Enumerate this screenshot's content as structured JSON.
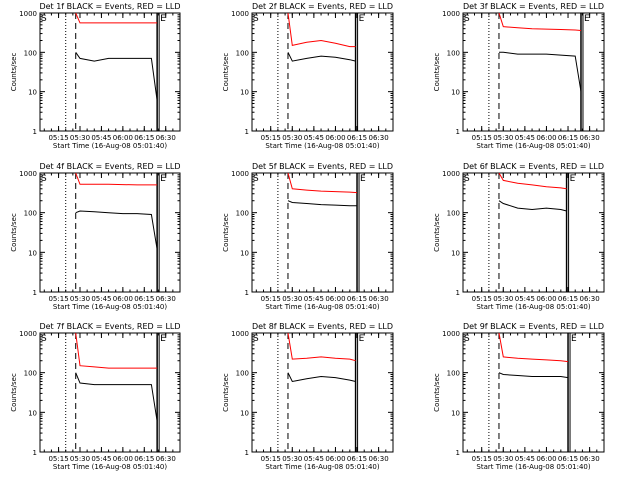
{
  "page": {
    "background": "#ffffff"
  },
  "colors": {
    "events": "#000000",
    "lld": "#ff0000",
    "axis": "#000000"
  },
  "chart_data": [
    {
      "type": "line",
      "title": "Det 1f BLACK = Events, RED = LLD",
      "xlabel": "Start Time (16-Aug-08 05:01:40)",
      "ylabel": "Counts/sec",
      "yscale": "log",
      "ylim": [
        1,
        1000
      ],
      "xlim_minutes": [
        "05:02",
        "06:40"
      ],
      "x_ticks": [
        "05:15",
        "05:30",
        "05:45",
        "06:00",
        "06:15",
        "06:30"
      ],
      "y_ticks": [
        "1",
        "10",
        "100",
        "1000"
      ],
      "markers": {
        "S": "05:02",
        "E": "06:24",
        "dotted": "05:20",
        "dashed": "05:27"
      },
      "x": [
        "05:27",
        "05:30",
        "05:40",
        "05:50",
        "06:00",
        "06:10",
        "06:20",
        "06:24"
      ],
      "series": [
        {
          "color": "#ff0000",
          "values": [
            1000,
            560,
            560,
            560,
            560,
            560,
            560,
            560
          ]
        },
        {
          "color": "#000000",
          "values": [
            100,
            70,
            60,
            70,
            70,
            70,
            70,
            6
          ]
        }
      ]
    },
    {
      "type": "line",
      "title": "Det 2f BLACK = Events, RED = LLD",
      "xlabel": "Start Time (16-Aug-08 05:01:40)",
      "ylabel": "Counts/sec",
      "yscale": "log",
      "ylim": [
        1,
        1000
      ],
      "x_ticks": [
        "05:15",
        "05:30",
        "05:45",
        "06:00",
        "06:15",
        "06:30"
      ],
      "y_ticks": [
        "1",
        "10",
        "100",
        "1000"
      ],
      "markers": {
        "S": "05:02",
        "E": "06:14",
        "dotted": "05:20",
        "dashed": "05:27"
      },
      "x": [
        "05:27",
        "05:30",
        "05:40",
        "05:50",
        "06:00",
        "06:10",
        "06:14"
      ],
      "series": [
        {
          "color": "#ff0000",
          "values": [
            1000,
            150,
            180,
            200,
            170,
            140,
            140
          ]
        },
        {
          "color": "#000000",
          "values": [
            100,
            60,
            70,
            80,
            75,
            65,
            60
          ]
        }
      ]
    },
    {
      "type": "line",
      "title": "Det 3f BLACK = Events, RED = LLD",
      "xlabel": "Start Time (16-Aug-08 05:01:40)",
      "ylabel": "Counts/sec",
      "yscale": "log",
      "ylim": [
        1,
        1000
      ],
      "x_ticks": [
        "05:15",
        "05:30",
        "05:45",
        "06:00",
        "06:15",
        "06:30"
      ],
      "y_ticks": [
        "1",
        "10",
        "100",
        "1000"
      ],
      "markers": {
        "S": "05:02",
        "E": "06:24",
        "dotted": "05:20",
        "dashed": "05:27"
      },
      "x": [
        "05:27",
        "05:30",
        "05:40",
        "05:50",
        "06:00",
        "06:10",
        "06:20",
        "06:24"
      ],
      "series": [
        {
          "color": "#ff0000",
          "values": [
            1000,
            450,
            420,
            400,
            390,
            380,
            370,
            360
          ]
        },
        {
          "color": "#000000",
          "values": [
            100,
            100,
            90,
            90,
            90,
            85,
            80,
            10
          ]
        }
      ]
    },
    {
      "type": "line",
      "title": "Det 4f BLACK = Events, RED = LLD",
      "xlabel": "Start Time (16-Aug-08 05:01:40)",
      "ylabel": "Counts/sec",
      "yscale": "log",
      "ylim": [
        1,
        1000
      ],
      "x_ticks": [
        "05:15",
        "05:30",
        "05:45",
        "06:00",
        "06:15",
        "06:30"
      ],
      "y_ticks": [
        "1",
        "10",
        "100",
        "1000"
      ],
      "markers": {
        "S": "05:02",
        "E": "06:24",
        "dotted": "05:20",
        "dashed": "05:27"
      },
      "x": [
        "05:27",
        "05:30",
        "05:40",
        "05:50",
        "06:00",
        "06:10",
        "06:20",
        "06:24"
      ],
      "series": [
        {
          "color": "#ff0000",
          "values": [
            1000,
            520,
            520,
            520,
            510,
            500,
            500,
            500
          ]
        },
        {
          "color": "#000000",
          "values": [
            100,
            110,
            105,
            100,
            95,
            95,
            90,
            12
          ]
        }
      ]
    },
    {
      "type": "line",
      "title": "Det 5f BLACK = Events, RED = LLD",
      "xlabel": "Start Time (16-Aug-08 05:01:40)",
      "ylabel": "Counts/sec",
      "yscale": "log",
      "ylim": [
        1,
        1000
      ],
      "x_ticks": [
        "05:15",
        "05:30",
        "05:45",
        "06:00",
        "06:15",
        "06:30"
      ],
      "y_ticks": [
        "1",
        "10",
        "100",
        "1000"
      ],
      "markers": {
        "S": "05:02",
        "E": "06:15",
        "dotted": "05:20",
        "dashed": "05:27"
      },
      "x": [
        "05:27",
        "05:30",
        "05:40",
        "05:50",
        "06:00",
        "06:10",
        "06:15"
      ],
      "series": [
        {
          "color": "#ff0000",
          "values": [
            1000,
            400,
            370,
            350,
            340,
            330,
            320
          ]
        },
        {
          "color": "#000000",
          "values": [
            200,
            180,
            170,
            160,
            155,
            150,
            150
          ]
        }
      ]
    },
    {
      "type": "line",
      "title": "Det 6f BLACK = Events, RED = LLD",
      "xlabel": "Start Time (16-Aug-08 05:01:40)",
      "ylabel": "Counts/sec",
      "yscale": "log",
      "ylim": [
        1,
        1000
      ],
      "x_ticks": [
        "05:15",
        "05:30",
        "05:45",
        "06:00",
        "06:15",
        "06:30"
      ],
      "y_ticks": [
        "1",
        "10",
        "100",
        "1000"
      ],
      "markers": {
        "S": "05:02",
        "E": "06:14",
        "dotted": "05:20",
        "dashed": "05:27"
      },
      "x": [
        "05:27",
        "05:30",
        "05:40",
        "05:50",
        "06:00",
        "06:10",
        "06:14"
      ],
      "series": [
        {
          "color": "#ff0000",
          "values": [
            1000,
            650,
            550,
            500,
            450,
            420,
            400
          ]
        },
        {
          "color": "#000000",
          "values": [
            200,
            170,
            130,
            120,
            130,
            120,
            110
          ]
        }
      ]
    },
    {
      "type": "line",
      "title": "Det 7f BLACK = Events, RED = LLD",
      "xlabel": "Start Time (16-Aug-08 05:01:40)",
      "ylabel": "Counts/sec",
      "yscale": "log",
      "ylim": [
        1,
        1000
      ],
      "x_ticks": [
        "05:15",
        "05:30",
        "05:45",
        "06:00",
        "06:15",
        "06:30"
      ],
      "y_ticks": [
        "1",
        "10",
        "100",
        "1000"
      ],
      "markers": {
        "S": "05:02",
        "E": "06:24",
        "dotted": "05:20",
        "dashed": "05:27"
      },
      "x": [
        "05:27",
        "05:30",
        "05:40",
        "05:50",
        "06:00",
        "06:10",
        "06:20",
        "06:24"
      ],
      "series": [
        {
          "color": "#ff0000",
          "values": [
            1000,
            150,
            140,
            130,
            130,
            130,
            130,
            130
          ]
        },
        {
          "color": "#000000",
          "values": [
            100,
            55,
            50,
            50,
            50,
            50,
            50,
            6
          ]
        }
      ]
    },
    {
      "type": "line",
      "title": "Det 8f BLACK = Events, RED = LLD",
      "xlabel": "Start Time (16-Aug-08 05:01:40)",
      "ylabel": "Counts/sec",
      "yscale": "log",
      "ylim": [
        1,
        1000
      ],
      "x_ticks": [
        "05:15",
        "05:30",
        "05:45",
        "06:00",
        "06:15",
        "06:30"
      ],
      "y_ticks": [
        "1",
        "10",
        "100",
        "1000"
      ],
      "markers": {
        "S": "05:02",
        "E": "06:14",
        "dotted": "05:20",
        "dashed": "05:27"
      },
      "x": [
        "05:27",
        "05:30",
        "05:40",
        "05:50",
        "06:00",
        "06:10",
        "06:14"
      ],
      "series": [
        {
          "color": "#ff0000",
          "values": [
            1000,
            220,
            230,
            250,
            230,
            220,
            200
          ]
        },
        {
          "color": "#000000",
          "values": [
            100,
            60,
            70,
            80,
            75,
            65,
            60
          ]
        }
      ]
    },
    {
      "type": "line",
      "title": "Det 9f BLACK = Events, RED = LLD",
      "xlabel": "Start Time (16-Aug-08 05:01:40)",
      "ylabel": "Counts/sec",
      "yscale": "log",
      "ylim": [
        1,
        1000
      ],
      "x_ticks": [
        "05:15",
        "05:30",
        "05:45",
        "06:00",
        "06:15",
        "06:30"
      ],
      "y_ticks": [
        "1",
        "10",
        "100",
        "1000"
      ],
      "markers": {
        "S": "05:02",
        "E": "06:15",
        "dotted": "05:20",
        "dashed": "05:27"
      },
      "x": [
        "05:27",
        "05:30",
        "05:40",
        "05:50",
        "06:00",
        "06:10",
        "06:15"
      ],
      "series": [
        {
          "color": "#ff0000",
          "values": [
            1000,
            250,
            230,
            220,
            210,
            200,
            190
          ]
        },
        {
          "color": "#000000",
          "values": [
            100,
            90,
            85,
            80,
            80,
            80,
            75
          ]
        }
      ]
    }
  ]
}
